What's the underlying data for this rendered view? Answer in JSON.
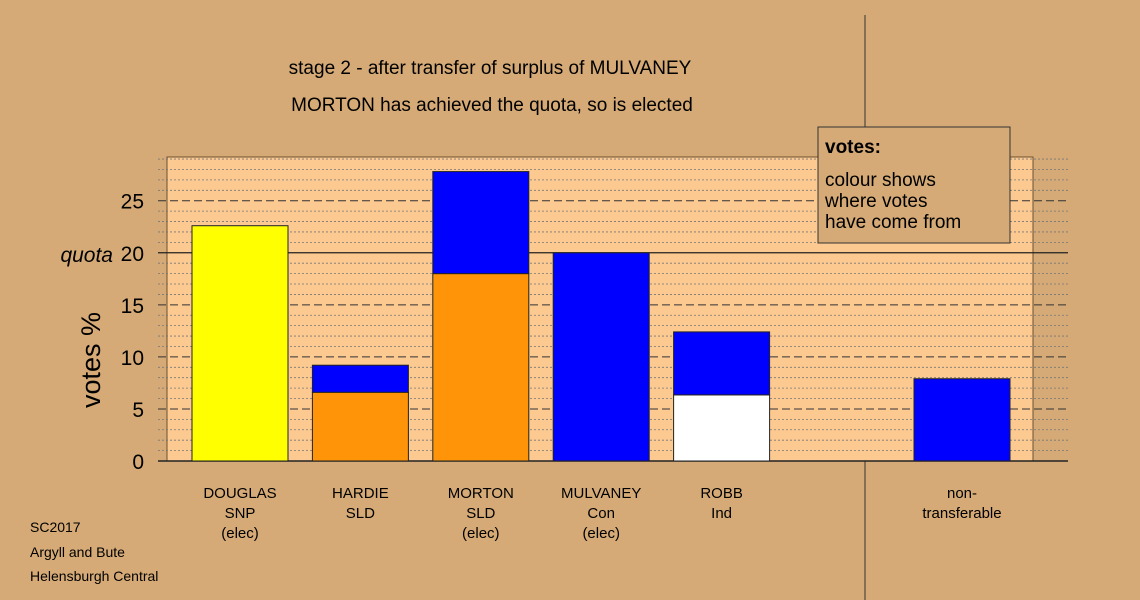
{
  "chart_data": {
    "type": "bar",
    "stacked": true,
    "title": "stage 2 - after transfer of surplus of MULVANEY",
    "subtitle": "MORTON has achieved the quota, so is elected",
    "ylabel": "votes %",
    "ylim": [
      0,
      29.2
    ],
    "yticks": [
      0,
      5,
      10,
      15,
      20,
      25
    ],
    "quota": {
      "value": 20,
      "label": "quota"
    },
    "grid": "minor dotted every 1, dashed every 5",
    "categories": [
      {
        "lines": [
          "DOUGLAS",
          "SNP",
          "(elec)"
        ],
        "segments": [
          {
            "value": 22.6,
            "color": "#ffff00"
          }
        ]
      },
      {
        "lines": [
          "HARDIE",
          "SLD"
        ],
        "segments": [
          {
            "value": 6.6,
            "color": "#ff9408"
          },
          {
            "value": 2.6,
            "color": "#0000ff"
          }
        ]
      },
      {
        "lines": [
          "MORTON",
          "SLD",
          "(elec)"
        ],
        "segments": [
          {
            "value": 18.0,
            "color": "#ff9408"
          },
          {
            "value": 9.8,
            "color": "#0000ff"
          }
        ]
      },
      {
        "lines": [
          "MULVANEY",
          "Con",
          "(elec)"
        ],
        "segments": [
          {
            "value": 20.0,
            "color": "#0000ff"
          }
        ]
      },
      {
        "lines": [
          "ROBB",
          "Ind"
        ],
        "segments": [
          {
            "value": 6.35,
            "color": "#ffffff"
          },
          {
            "value": 6.05,
            "color": "#0000ff"
          }
        ]
      },
      {
        "lines": [
          "non-",
          "transferable"
        ],
        "segments": [
          {
            "value": 7.9,
            "color": "#0000ff"
          }
        ],
        "separated": true
      }
    ],
    "legend": {
      "title": "votes:",
      "lines": [
        "colour shows",
        "where votes",
        "have come from"
      ],
      "placement": "top-right"
    }
  },
  "footer": [
    "SC2017",
    "Argyll and Bute",
    "Helensburgh Central"
  ]
}
